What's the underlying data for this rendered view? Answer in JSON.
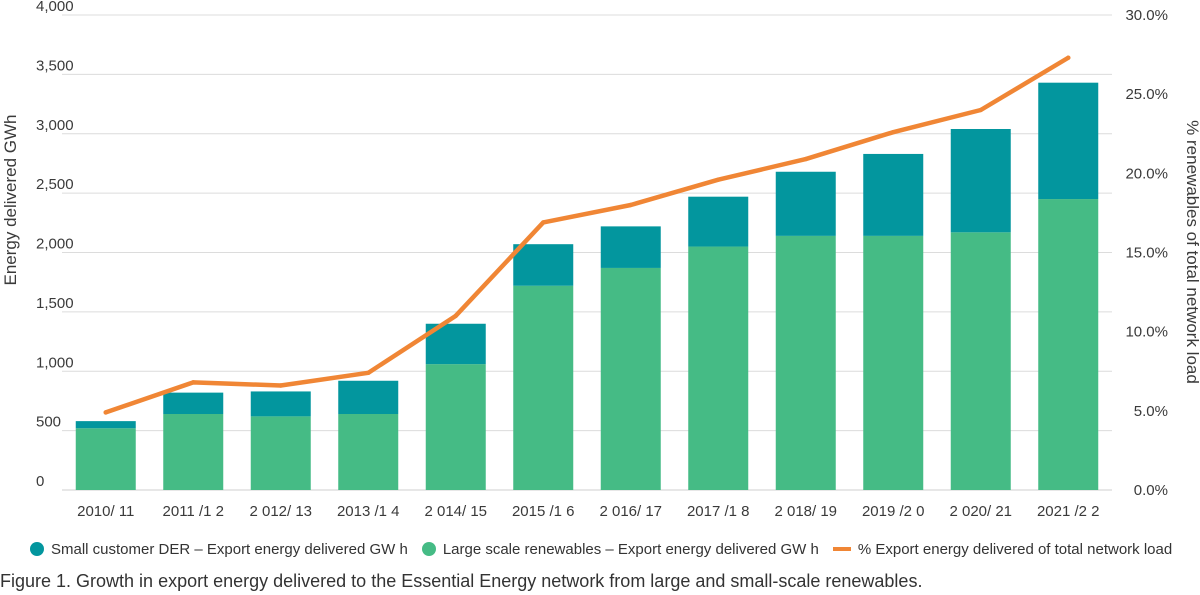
{
  "chart_data": {
    "type": "bar",
    "stacked": true,
    "categories": [
      "2010/ 11",
      "2011 /1 2",
      "2 012/ 13",
      "2013 /1 4",
      "2 014/ 15",
      "2015 /1 6",
      "2 016/ 17",
      "2017 /1 8",
      "2 018/ 19",
      "2019 /2 0",
      "2 020/ 21",
      "2021 /2 2"
    ],
    "series": [
      {
        "name": "Large scale renewables – Export energy delivered GW h",
        "kind": "bar",
        "axis": "left",
        "color": "#45bb85",
        "values": [
          520,
          640,
          620,
          640,
          1060,
          1720,
          1870,
          2050,
          2140,
          2140,
          2170,
          2450
        ]
      },
      {
        "name": "Small customer DER – Export energy delivered GW h",
        "kind": "bar",
        "axis": "left",
        "color": "#03969e",
        "values": [
          60,
          180,
          210,
          280,
          340,
          350,
          350,
          420,
          540,
          690,
          870,
          980
        ]
      },
      {
        "name": "% Export energy delivered of total network load",
        "kind": "line",
        "axis": "right",
        "color": "#f08635",
        "values": [
          4.9,
          6.8,
          6.6,
          7.4,
          11.0,
          16.9,
          18.0,
          19.6,
          20.9,
          22.6,
          24.0,
          27.3
        ]
      }
    ],
    "ylabel": "Energy delivered GWh",
    "y2label": "% renewables of total network load",
    "ylim": [
      0,
      4000
    ],
    "y2lim": [
      0,
      30
    ],
    "yticks": [
      "0",
      "500",
      "1,000",
      "1,500",
      "2,000",
      "2,500",
      "3,000",
      "3,500",
      "4,000"
    ],
    "y2ticks": [
      "0.0%",
      "5.0%",
      "10.0%",
      "15.0%",
      "20.0%",
      "25.0%",
      "30.0%"
    ],
    "grid": true,
    "legend_position": "bottom",
    "legend": [
      {
        "label": "Small customer DER – Export energy delivered GW h",
        "color": "#03969e",
        "shape": "dot"
      },
      {
        "label": "Large scale renewables – Export energy delivered GW h",
        "color": "#45bb85",
        "shape": "dot"
      },
      {
        "label": "% Export energy delivered of total network load",
        "color": "#f08635",
        "shape": "line"
      }
    ]
  },
  "caption": "Figure 1. Growth in export energy delivered to the Essential Energy network from large and small-scale renewables."
}
